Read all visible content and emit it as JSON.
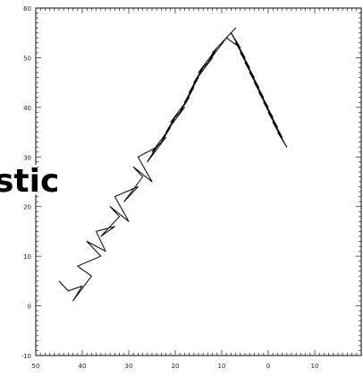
{
  "chart_data": {
    "type": "line",
    "title": "",
    "xlabel": "",
    "ylabel": "",
    "xlim": [
      -50,
      20
    ],
    "ylim": [
      -10,
      60
    ],
    "xticks": [
      -50,
      -40,
      -30,
      -20,
      -10,
      0,
      10
    ],
    "xtick_labels": [
      "50",
      "40",
      "30",
      "20",
      "10",
      "0",
      "10"
    ],
    "yticks": [
      0,
      10,
      20,
      30,
      40,
      50,
      60
    ],
    "ytick_labels": [
      "0",
      "10",
      "20",
      "30",
      "40",
      "50",
      "60"
    ],
    "bottom_left_label": "-10",
    "grid": false,
    "series": [
      {
        "color": "#000000",
        "x": [
          -45,
          -43,
          -40,
          -42,
          -38,
          -41,
          -36,
          -39,
          -35,
          -37,
          -33,
          -36,
          -32,
          -34,
          -30,
          -33,
          -28,
          -31,
          -27,
          -29,
          -25,
          -28,
          -24,
          -26,
          -22,
          -25,
          -21,
          -23,
          -20,
          -22,
          -18,
          -21,
          -17,
          -19,
          -16,
          -18,
          -15,
          -17,
          -14,
          -16,
          -12,
          -15,
          -11,
          -13,
          -9,
          -12,
          -8,
          -10,
          -7,
          -9,
          -6,
          -8,
          -5,
          -7,
          -4,
          -6,
          -3,
          -5,
          -2,
          -4,
          -1,
          -3,
          0,
          -2,
          1,
          -1,
          2,
          0,
          3,
          1,
          4,
          2
        ],
        "y": [
          5,
          3,
          4,
          1,
          6,
          8,
          10,
          13,
          11,
          15,
          16,
          14,
          18,
          20,
          17,
          22,
          24,
          21,
          26,
          28,
          25,
          30,
          32,
          29,
          34,
          31,
          36,
          33,
          38,
          35,
          40,
          37,
          42,
          39,
          44,
          41,
          46,
          43,
          48,
          45,
          50,
          47,
          52,
          49,
          54,
          51,
          55,
          53,
          56,
          54,
          52,
          55,
          50,
          53,
          48,
          51,
          46,
          49,
          44,
          47,
          42,
          45,
          40,
          43,
          38,
          41,
          36,
          39,
          34,
          37,
          32,
          35
        ]
      }
    ]
  },
  "overlay_text": "stic"
}
